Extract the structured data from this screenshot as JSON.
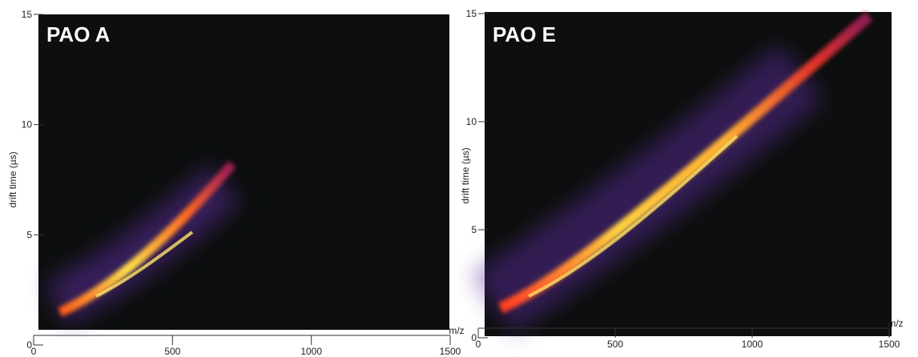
{
  "chart_data": [
    {
      "type": "heatmap",
      "title": "PAO A",
      "x_label": "m/z",
      "y_label": "drift time (µs)",
      "xlim": [
        0,
        1500
      ],
      "xticks": [
        0,
        500,
        1000,
        1500
      ],
      "ylim": [
        0,
        15
      ],
      "yticks": [
        0,
        5,
        10,
        15
      ]
    },
    {
      "type": "heatmap",
      "title": "PAO E",
      "x_label": "m/z",
      "y_label": "drift time (µs)",
      "xlim": [
        0,
        1500
      ],
      "xticks": [
        0,
        500,
        1000,
        1500
      ],
      "ylim": [
        0,
        15
      ],
      "yticks": [
        0,
        5,
        10,
        15
      ]
    }
  ]
}
